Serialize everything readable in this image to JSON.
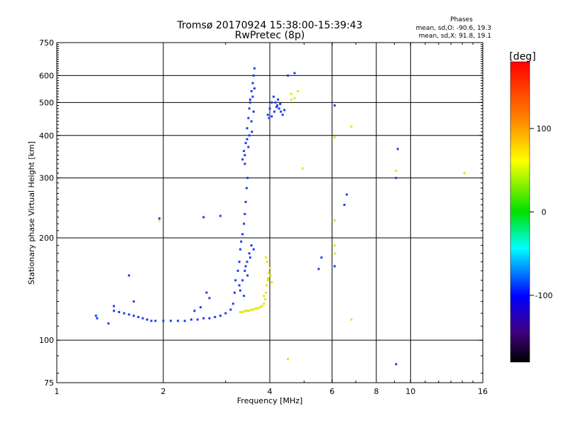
{
  "chart_data": {
    "type": "scatter",
    "title": "Tromsø 20170924 15:38:00-15:39:43",
    "subtitle": "RwPretec (8p)",
    "xlabel": "Frequency [MHz]",
    "ylabel": "Stationary phase Virtual Height [km]",
    "x_scale": "log",
    "y_scale": "log",
    "xlim": [
      1,
      16
    ],
    "ylim": [
      75,
      750
    ],
    "grid": true,
    "x_ticks": [
      1,
      2,
      4,
      6,
      8,
      10,
      16
    ],
    "x_tick_labels": [
      "1",
      "2",
      "4",
      "6",
      "8",
      "10",
      "16"
    ],
    "x_grid": [
      2,
      4,
      6,
      8,
      10
    ],
    "y_ticks": [
      75,
      100,
      200,
      300,
      400,
      500,
      600,
      750
    ],
    "y_tick_labels": [
      "75",
      "100",
      "200",
      "300",
      "400",
      "500",
      "600",
      "750"
    ],
    "y_grid": [
      100,
      200,
      300,
      400,
      500,
      600
    ],
    "legend": {
      "title": "Phases",
      "lines": [
        "mean, sd,O: -90.6, 19.3",
        "mean, sd,X:  91.8, 19.1"
      ],
      "placement": "top-right"
    },
    "colorbar": {
      "label": "[deg]",
      "ticks": [
        100,
        0,
        -100
      ],
      "tick_labels": [
        "100",
        "0",
        "-100"
      ],
      "range": [
        -180,
        180
      ],
      "colors_top_to_bottom": [
        "#ff0000",
        "#ff8c00",
        "#ffff00",
        "#00e000",
        "#00ffff",
        "#0000ff",
        "#400080",
        "#000000"
      ]
    },
    "series": [
      {
        "name": "O",
        "color": "#1f3cf0",
        "points": [
          [
            1.29,
            118
          ],
          [
            1.3,
            116
          ],
          [
            1.4,
            112
          ],
          [
            1.45,
            122
          ],
          [
            1.5,
            121
          ],
          [
            1.55,
            120
          ],
          [
            1.6,
            119
          ],
          [
            1.65,
            118
          ],
          [
            1.7,
            117
          ],
          [
            1.75,
            116
          ],
          [
            1.8,
            115
          ],
          [
            1.85,
            114
          ],
          [
            1.9,
            114
          ],
          [
            2.0,
            114
          ],
          [
            2.1,
            114
          ],
          [
            2.2,
            114
          ],
          [
            2.3,
            114
          ],
          [
            2.4,
            115
          ],
          [
            2.5,
            115
          ],
          [
            2.6,
            116
          ],
          [
            2.7,
            116
          ],
          [
            2.8,
            117
          ],
          [
            2.9,
            118
          ],
          [
            3.0,
            120
          ],
          [
            3.1,
            123
          ],
          [
            3.15,
            128
          ],
          [
            3.18,
            138
          ],
          [
            3.2,
            150
          ],
          [
            3.25,
            160
          ],
          [
            3.28,
            170
          ],
          [
            3.3,
            185
          ],
          [
            3.32,
            195
          ],
          [
            3.35,
            205
          ],
          [
            3.38,
            220
          ],
          [
            3.4,
            235
          ],
          [
            3.42,
            255
          ],
          [
            3.44,
            280
          ],
          [
            3.46,
            300
          ],
          [
            3.4,
            350
          ],
          [
            3.42,
            380
          ],
          [
            3.45,
            420
          ],
          [
            3.48,
            450
          ],
          [
            3.5,
            480
          ],
          [
            3.52,
            510
          ],
          [
            3.55,
            540
          ],
          [
            3.58,
            570
          ],
          [
            3.6,
            600
          ],
          [
            3.62,
            630
          ],
          [
            3.35,
            340
          ],
          [
            3.38,
            360
          ],
          [
            3.5,
            400
          ],
          [
            3.55,
            440
          ],
          [
            3.6,
            470
          ],
          [
            3.52,
            500
          ],
          [
            3.45,
            390
          ],
          [
            3.58,
            520
          ],
          [
            3.62,
            550
          ],
          [
            3.4,
            330
          ],
          [
            3.48,
            370
          ],
          [
            3.56,
            410
          ],
          [
            3.3,
            140
          ],
          [
            3.35,
            150
          ],
          [
            3.4,
            160
          ],
          [
            3.45,
            170
          ],
          [
            3.5,
            180
          ],
          [
            3.55,
            190
          ],
          [
            3.28,
            145
          ],
          [
            3.42,
            165
          ],
          [
            3.52,
            175
          ],
          [
            3.6,
            185
          ],
          [
            3.38,
            135
          ],
          [
            3.46,
            155
          ],
          [
            3.95,
            460
          ],
          [
            4.0,
            480
          ],
          [
            4.05,
            500
          ],
          [
            4.1,
            520
          ],
          [
            4.15,
            500
          ],
          [
            4.2,
            490
          ],
          [
            4.25,
            480
          ],
          [
            4.3,
            470
          ],
          [
            4.35,
            460
          ],
          [
            3.98,
            450
          ],
          [
            4.12,
            470
          ],
          [
            4.22,
            510
          ],
          [
            4.28,
            495
          ],
          [
            4.05,
            455
          ],
          [
            4.18,
            485
          ],
          [
            4.4,
            475
          ],
          [
            1.6,
            155
          ],
          [
            1.65,
            130
          ],
          [
            1.45,
            126
          ],
          [
            2.65,
            138
          ],
          [
            2.7,
            133
          ],
          [
            2.55,
            125
          ],
          [
            2.45,
            122
          ],
          [
            1.95,
            228
          ],
          [
            2.6,
            230
          ],
          [
            2.9,
            232
          ],
          [
            4.5,
            600
          ],
          [
            4.7,
            610
          ],
          [
            5.6,
            175
          ],
          [
            5.5,
            162
          ],
          [
            6.1,
            490
          ],
          [
            6.1,
            165
          ],
          [
            6.5,
            250
          ],
          [
            6.6,
            268
          ],
          [
            9.2,
            365
          ],
          [
            9.1,
            300
          ],
          [
            9.1,
            85
          ]
        ]
      },
      {
        "name": "X",
        "color": "#e6e600",
        "points": [
          [
            3.3,
            121
          ],
          [
            3.35,
            121
          ],
          [
            3.4,
            122
          ],
          [
            3.45,
            122
          ],
          [
            3.5,
            122
          ],
          [
            3.55,
            123
          ],
          [
            3.6,
            123
          ],
          [
            3.65,
            124
          ],
          [
            3.7,
            124
          ],
          [
            3.75,
            125
          ],
          [
            3.8,
            126
          ],
          [
            3.85,
            128
          ],
          [
            3.88,
            132
          ],
          [
            3.9,
            138
          ],
          [
            3.92,
            145
          ],
          [
            3.95,
            152
          ],
          [
            3.97,
            158
          ],
          [
            4.0,
            163
          ],
          [
            3.93,
            170
          ],
          [
            3.9,
            175
          ],
          [
            3.95,
            150
          ],
          [
            4.02,
            155
          ],
          [
            4.05,
            148
          ],
          [
            3.85,
            135
          ],
          [
            4.6,
            510
          ],
          [
            4.7,
            515
          ],
          [
            4.8,
            540
          ],
          [
            4.6,
            530
          ],
          [
            6.1,
            395
          ],
          [
            6.1,
            225
          ],
          [
            6.1,
            190
          ],
          [
            6.12,
            180
          ],
          [
            6.8,
            425
          ],
          [
            6.8,
            115
          ],
          [
            4.95,
            320
          ],
          [
            9.1,
            315
          ],
          [
            14.2,
            310
          ],
          [
            1.95,
            225
          ],
          [
            4.5,
            88
          ]
        ]
      }
    ]
  }
}
